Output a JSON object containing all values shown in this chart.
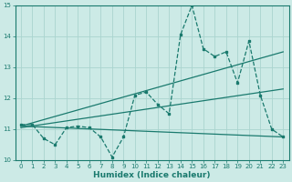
{
  "xlabel": "Humidex (Indice chaleur)",
  "xlim": [
    -0.5,
    23.5
  ],
  "ylim": [
    10,
    15
  ],
  "yticks": [
    10,
    11,
    12,
    13,
    14,
    15
  ],
  "xticks": [
    0,
    1,
    2,
    3,
    4,
    5,
    6,
    7,
    8,
    9,
    10,
    11,
    12,
    13,
    14,
    15,
    16,
    17,
    18,
    19,
    20,
    21,
    22,
    23
  ],
  "bg_color": "#cceae6",
  "grid_color": "#aad4cf",
  "line_color": "#1a7a6e",
  "line1_x": [
    0,
    1,
    2,
    3,
    4,
    5,
    6,
    7,
    8,
    9,
    10,
    11,
    12,
    13,
    14,
    15,
    16,
    17,
    18,
    19,
    20,
    21,
    22,
    23
  ],
  "line1_y": [
    11.15,
    11.15,
    10.7,
    10.5,
    11.05,
    11.1,
    11.05,
    10.75,
    10.1,
    10.75,
    12.1,
    12.2,
    11.8,
    11.5,
    14.05,
    15.0,
    13.6,
    13.35,
    13.5,
    12.5,
    13.85,
    12.1,
    11.0,
    10.75
  ],
  "line2_x": [
    0,
    23
  ],
  "line2_y": [
    11.1,
    10.75
  ],
  "line3_x": [
    0,
    23
  ],
  "line3_y": [
    11.05,
    12.3
  ],
  "line4_x": [
    0,
    23
  ],
  "line4_y": [
    11.1,
    13.5
  ]
}
